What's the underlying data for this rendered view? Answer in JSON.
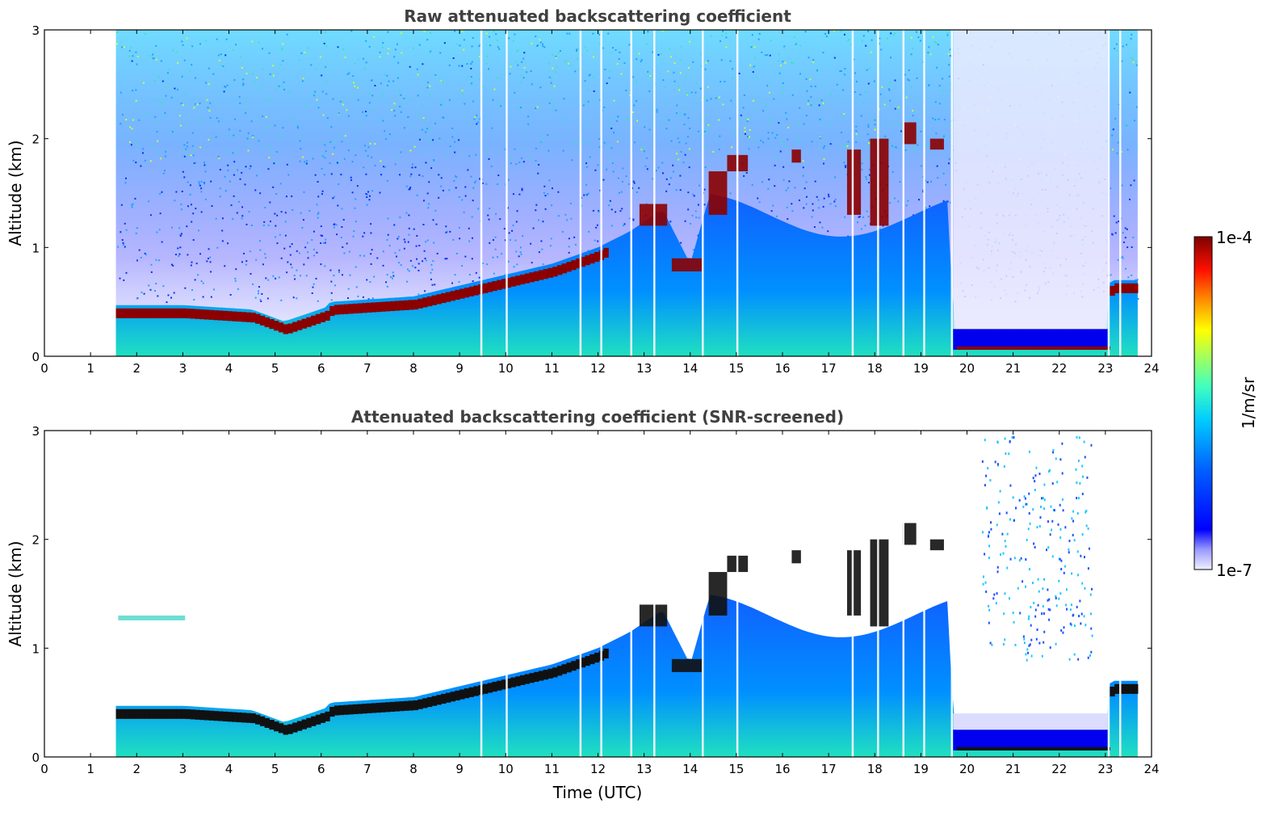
{
  "chart_data": [
    {
      "type": "heatmap",
      "title": "Raw attenuated backscattering coefficient",
      "xlabel": "",
      "ylabel": "Altitude (km)",
      "xlim": [
        0,
        24
      ],
      "ylim": [
        0,
        3
      ],
      "xticks": [
        "0",
        "1",
        "2",
        "3",
        "4",
        "5",
        "6",
        "7",
        "8",
        "9",
        "10",
        "11",
        "12",
        "13",
        "14",
        "15",
        "16",
        "17",
        "18",
        "19",
        "20",
        "21",
        "22",
        "23",
        "24"
      ],
      "yticks": [
        "0",
        "1",
        "2",
        "3"
      ],
      "data_start_hour": 1.55,
      "data_end_hour": 23.7,
      "layer_top_km": [
        [
          1.55,
          0.47
        ],
        [
          3,
          0.47
        ],
        [
          4.5,
          0.43
        ],
        [
          5.2,
          0.32
        ],
        [
          6.1,
          0.45
        ],
        [
          6.2,
          0.5
        ],
        [
          8,
          0.55
        ],
        [
          9.5,
          0.7
        ],
        [
          11,
          0.85
        ],
        [
          12,
          1.0
        ],
        [
          12.7,
          1.15
        ],
        [
          13.4,
          1.35
        ],
        [
          14,
          0.85
        ],
        [
          14.5,
          1.6
        ],
        [
          15.2,
          1.85
        ],
        [
          16.3,
          1.9
        ],
        [
          17.5,
          1.8
        ],
        [
          18.6,
          2.1
        ],
        [
          19.6,
          2.0
        ],
        [
          19.7,
          0.12
        ],
        [
          23,
          0.12
        ],
        [
          23.1,
          0.7
        ],
        [
          23.7,
          0.7
        ]
      ],
      "colorbar": {
        "min_label": "1e-7",
        "max_label": "1e-4",
        "label": "1/m/sr",
        "scale": "log",
        "range": [
          1e-07,
          0.0001
        ]
      }
    },
    {
      "type": "heatmap",
      "title": "Attenuated backscattering coefficient (SNR-screened)",
      "xlabel": "Time (UTC)",
      "ylabel": "Altitude (km)",
      "xlim": [
        0,
        24
      ],
      "ylim": [
        0,
        3
      ],
      "xticks": [
        "0",
        "1",
        "2",
        "3",
        "4",
        "5",
        "6",
        "7",
        "8",
        "9",
        "10",
        "11",
        "12",
        "13",
        "14",
        "15",
        "16",
        "17",
        "18",
        "19",
        "20",
        "21",
        "22",
        "23",
        "24"
      ],
      "yticks": [
        "0",
        "1",
        "2",
        "3"
      ],
      "data_start_hour": 1.55,
      "data_end_hour": 23.7
    }
  ],
  "colors": {
    "jet": [
      "#00007f",
      "#0000ff",
      "#007fff",
      "#00ffff",
      "#7fff7f",
      "#ffff00",
      "#ff7f00",
      "#ff0000",
      "#7f0000"
    ],
    "background": "#ffffff",
    "title_color": "#404040"
  }
}
